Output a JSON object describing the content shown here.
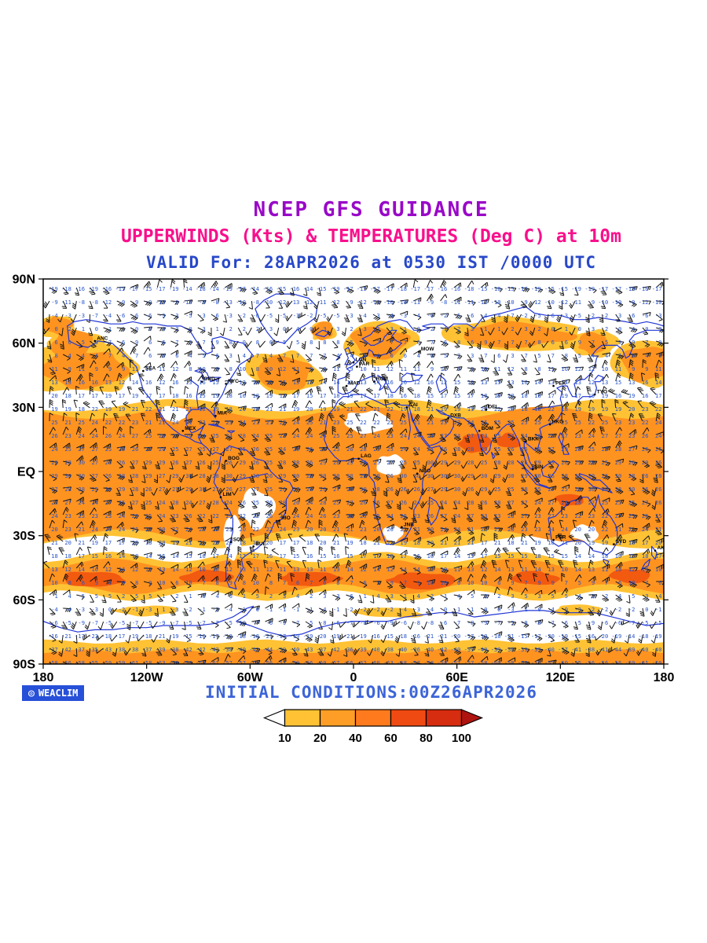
{
  "header": {
    "title": "NCEP GFS GUIDANCE",
    "subtitle": "UPPERWINDS (Kts) & TEMPERATURES (Deg C) at 10m",
    "valid_line": "VALID For: 28APR2026 at 0530 IST /0000 UTC"
  },
  "map": {
    "lat_labels": [
      "90N",
      "60N",
      "30N",
      "EQ",
      "30S",
      "60S",
      "90S"
    ],
    "lon_labels": [
      "180",
      "120W",
      "60W",
      "0",
      "60E",
      "120E",
      "180"
    ]
  },
  "footer": {
    "logo_icon": "◎",
    "logo_text": "WEACLIM",
    "initial_conditions": "INITIAL CONDITIONS:00Z26APR2026"
  },
  "colorbar": {
    "tick_labels": [
      "10",
      "20",
      "40",
      "60",
      "80",
      "100"
    ],
    "segment_colors": [
      "#ffc234",
      "#ff9e26",
      "#ff7a1c",
      "#ef4a12",
      "#d62c10"
    ],
    "left_arrow_color": "#ffffff",
    "right_arrow_color": "#b01410"
  },
  "cities": [
    {
      "code": "ANC",
      "lon": -150,
      "lat": 61
    },
    {
      "code": "SEA",
      "lon": -122,
      "lat": 47
    },
    {
      "code": "ORD",
      "lon": -88,
      "lat": 42
    },
    {
      "code": "NYC",
      "lon": -74,
      "lat": 41
    },
    {
      "code": "MIA",
      "lon": -80,
      "lat": 26
    },
    {
      "code": "MEX",
      "lon": -99,
      "lat": 19
    },
    {
      "code": "BOG",
      "lon": -74,
      "lat": 5
    },
    {
      "code": "LIM",
      "lon": -77,
      "lat": -12
    },
    {
      "code": "RIO",
      "lon": -43,
      "lat": -23
    },
    {
      "code": "BUE",
      "lon": -58,
      "lat": -35
    },
    {
      "code": "SCL",
      "lon": -71,
      "lat": -33
    },
    {
      "code": "LON",
      "lon": 0,
      "lat": 51
    },
    {
      "code": "PAR",
      "lon": 2,
      "lat": 49
    },
    {
      "code": "MAD",
      "lon": -4,
      "lat": 40
    },
    {
      "code": "ROM",
      "lon": 12,
      "lat": 42
    },
    {
      "code": "CAI",
      "lon": 31,
      "lat": 30
    },
    {
      "code": "LAG",
      "lon": 3,
      "lat": 6
    },
    {
      "code": "NBO",
      "lon": 37,
      "lat": -1
    },
    {
      "code": "JNB",
      "lon": 28,
      "lat": -26
    },
    {
      "code": "MOW",
      "lon": 38,
      "lat": 56
    },
    {
      "code": "DXB",
      "lon": 55,
      "lat": 25
    },
    {
      "code": "DEL",
      "lon": 77,
      "lat": 29
    },
    {
      "code": "BOM",
      "lon": 73,
      "lat": 19
    },
    {
      "code": "BKK",
      "lon": 100,
      "lat": 14
    },
    {
      "code": "SIN",
      "lon": 104,
      "lat": 1
    },
    {
      "code": "HKG",
      "lon": 114,
      "lat": 22
    },
    {
      "code": "PEK",
      "lon": 116,
      "lat": 40
    },
    {
      "code": "TYO",
      "lon": 140,
      "lat": 36
    },
    {
      "code": "SYD",
      "lon": 151,
      "lat": -34
    },
    {
      "code": "PER",
      "lon": 116,
      "lat": -32
    },
    {
      "code": "AKL",
      "lon": 175,
      "lat": -37
    }
  ],
  "colors": {
    "title": "#9908c8",
    "subtitle": "#f8108c",
    "valid": "#2848c8",
    "initial_conditions": "#3c64d8",
    "logo_bg": "#2750d8",
    "coastline": "#2136d6",
    "temperature_text": "#2553cc",
    "wind_barb": "#141414",
    "axis_text": "#000000",
    "shade_light": "#ffc234",
    "shade_mid": "#ff9320",
    "shade_deep": "#f25a10"
  }
}
